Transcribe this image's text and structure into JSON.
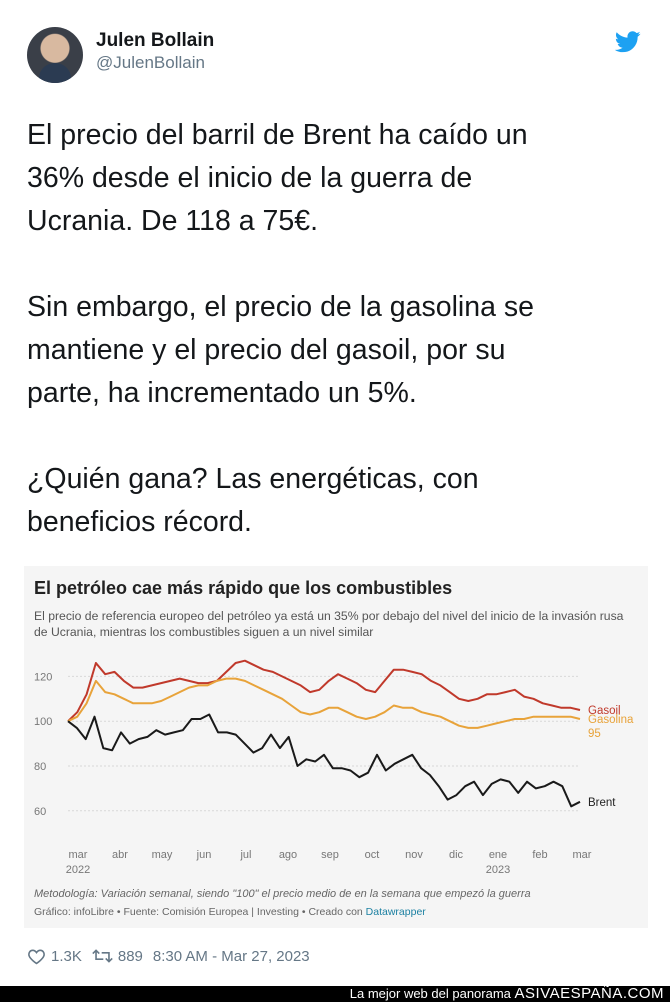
{
  "user": {
    "name": "Julen Bollain",
    "handle": "@JulenBollain"
  },
  "tweet": {
    "paragraphs": [
      "El precio del barril de Brent ha caído un\n36% desde el inicio de la guerra de\nUcrania. De 118 a 75€.",
      "Sin embargo, el precio de la gasolina se\nmantiene y el precio del gasoil, por su\nparte, ha incrementado un 5%.",
      "¿Quién gana? Las energéticas, con\nbeneficios récord."
    ]
  },
  "chart_data": {
    "type": "line",
    "title": "El petróleo cae más rápido que los combustibles",
    "subtitle": "El precio de referencia europeo del petróleo ya está un 35% por debajo del nivel del inicio de la invasión rusa de Ucrania, mientras los combustibles siguen a un nivel similar",
    "y_ticks": [
      "120",
      "100",
      "80",
      "60"
    ],
    "ylim": [
      55,
      130
    ],
    "x_ticks": [
      {
        "label": "mar",
        "year": "2022"
      },
      {
        "label": "abr"
      },
      {
        "label": "may"
      },
      {
        "label": "jun"
      },
      {
        "label": "jul"
      },
      {
        "label": "ago"
      },
      {
        "label": "sep"
      },
      {
        "label": "oct"
      },
      {
        "label": "nov"
      },
      {
        "label": "dic"
      },
      {
        "label": "ene",
        "year": "2023"
      },
      {
        "label": "feb"
      },
      {
        "label": "mar"
      }
    ],
    "series": [
      {
        "name": "Gasoil",
        "color": "#c0392b",
        "values": [
          100,
          104,
          112,
          126,
          121,
          122,
          118,
          115,
          115,
          116,
          117,
          118,
          119,
          118,
          117,
          117,
          118,
          122,
          126,
          127,
          125,
          123,
          122,
          120,
          118,
          116,
          113,
          114,
          118,
          121,
          119,
          117,
          114,
          113,
          118,
          123,
          123,
          122,
          121,
          118,
          116,
          113,
          110,
          109,
          110,
          112,
          112,
          113,
          114,
          111,
          110,
          108,
          107,
          106,
          106,
          105
        ]
      },
      {
        "name": "Gasolina 95",
        "color": "#e8a33a",
        "values": [
          100,
          102,
          108,
          118,
          113,
          112,
          110,
          108,
          108,
          108,
          109,
          111,
          113,
          115,
          116,
          116,
          118,
          119,
          119,
          118,
          116,
          114,
          112,
          110,
          107,
          104,
          103,
          104,
          106,
          106,
          104,
          102,
          101,
          102,
          104,
          107,
          106,
          106,
          104,
          103,
          102,
          100,
          98,
          97,
          97,
          98,
          99,
          100,
          101,
          101,
          102,
          102,
          102,
          102,
          102,
          101
        ]
      },
      {
        "name": "Brent",
        "color": "#1a1a1a",
        "values": [
          100,
          97,
          92,
          102,
          88,
          87,
          95,
          90,
          92,
          93,
          96,
          94,
          95,
          96,
          101,
          101,
          103,
          95,
          95,
          94,
          90,
          86,
          88,
          94,
          88,
          93,
          80,
          83,
          82,
          85,
          79,
          79,
          78,
          75,
          77,
          85,
          78,
          81,
          83,
          85,
          79,
          76,
          71,
          65,
          67,
          71,
          73,
          67,
          72,
          74,
          73,
          68,
          73,
          70,
          71,
          73,
          71,
          62,
          64
        ]
      }
    ]
  },
  "chart_notes": {
    "method": "Metodología: Variación semanal, siendo \"100\" el precio medio de en la semana que empezó la guerra",
    "source_prefix": "Gráfico: infoLibre • Fuente: Comisión Europea | Investing • Creado con ",
    "source_link": "Datawrapper"
  },
  "stats": {
    "likes": "1.3K",
    "retweets": "889",
    "timestamp": "8:30 AM - Mar 27, 2023"
  },
  "banner": {
    "prefix": "La mejor web del panorama ",
    "site": "ASIVAESPAÑA.COM"
  },
  "icons": {
    "brand": "twitter-bird-icon",
    "like": "heart-icon",
    "retweet": "retweet-icon"
  },
  "colors": {
    "twitter_blue": "#1da1f2"
  }
}
